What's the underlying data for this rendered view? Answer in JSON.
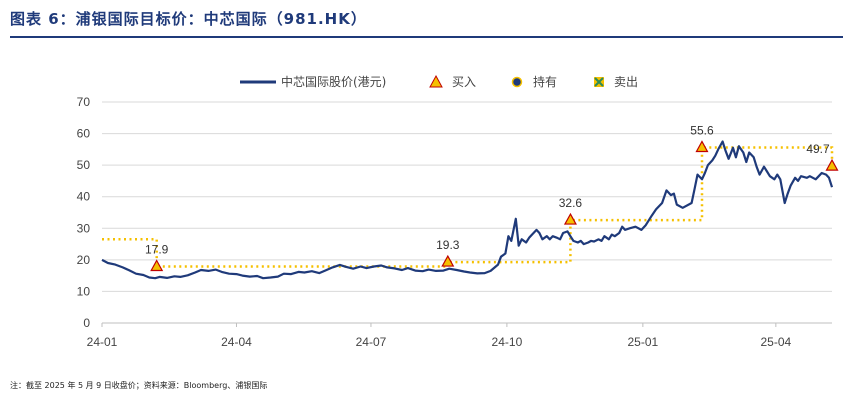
{
  "figure": {
    "title": "图表 6：浦银国际目标价：中芯国际（981.HK）",
    "source": "注：截至 2025 年 5 月 9 日收盘价；资料来源：Bloomberg、浦银国际"
  },
  "legend": {
    "price": "中芯国际股价(港元)",
    "buy": "买入",
    "hold": "持有",
    "sell": "卖出"
  },
  "colors": {
    "price_line": "#1f3a7a",
    "target_line": "#f5c000",
    "buy_marker": "#f5c000",
    "buy_marker_edge": "#c00000",
    "hold_marker": "#1f3a7a",
    "sell_marker": "#2e8b57",
    "grid": "#d9d9d9",
    "title": "#1f3a7a"
  },
  "chart_data": {
    "type": "line",
    "ylim": [
      0,
      70
    ],
    "yticks": [
      0,
      10,
      20,
      30,
      40,
      50,
      60,
      70
    ],
    "xlim": [
      "2024-01-01",
      "2025-05-09"
    ],
    "xticks": [
      {
        "label": "24-01",
        "date": "2024-01-01"
      },
      {
        "label": "24-04",
        "date": "2024-04-01"
      },
      {
        "label": "24-07",
        "date": "2024-07-01"
      },
      {
        "label": "24-10",
        "date": "2024-10-01"
      },
      {
        "label": "25-01",
        "date": "2025-01-01"
      },
      {
        "label": "25-04",
        "date": "2025-04-01"
      }
    ],
    "grid": true,
    "legend_position": "top",
    "price_series": {
      "name": "中芯国际股价(港元)",
      "points": [
        [
          "2024-01-01",
          20.0
        ],
        [
          "2024-01-05",
          19.0
        ],
        [
          "2024-01-10",
          18.5
        ],
        [
          "2024-01-15",
          17.6
        ],
        [
          "2024-01-19",
          16.8
        ],
        [
          "2024-01-24",
          15.6
        ],
        [
          "2024-01-29",
          15.2
        ],
        [
          "2024-02-02",
          14.4
        ],
        [
          "2024-02-06",
          14.2
        ],
        [
          "2024-02-09",
          14.6
        ],
        [
          "2024-02-14",
          14.3
        ],
        [
          "2024-02-19",
          14.8
        ],
        [
          "2024-02-23",
          14.6
        ],
        [
          "2024-02-28",
          15.1
        ],
        [
          "2024-03-04",
          16.0
        ],
        [
          "2024-03-08",
          16.8
        ],
        [
          "2024-03-13",
          16.5
        ],
        [
          "2024-03-18",
          16.9
        ],
        [
          "2024-03-22",
          16.2
        ],
        [
          "2024-03-27",
          15.6
        ],
        [
          "2024-04-01",
          15.5
        ],
        [
          "2024-04-05",
          15.0
        ],
        [
          "2024-04-10",
          14.7
        ],
        [
          "2024-04-15",
          14.9
        ],
        [
          "2024-04-19",
          14.2
        ],
        [
          "2024-04-24",
          14.4
        ],
        [
          "2024-04-29",
          14.7
        ],
        [
          "2024-05-03",
          15.6
        ],
        [
          "2024-05-08",
          15.5
        ],
        [
          "2024-05-13",
          16.2
        ],
        [
          "2024-05-17",
          16.0
        ],
        [
          "2024-05-22",
          16.4
        ],
        [
          "2024-05-27",
          15.8
        ],
        [
          "2024-05-31",
          16.6
        ],
        [
          "2024-06-05",
          17.6
        ],
        [
          "2024-06-10",
          18.4
        ],
        [
          "2024-06-14",
          17.8
        ],
        [
          "2024-06-19",
          17.2
        ],
        [
          "2024-06-24",
          17.9
        ],
        [
          "2024-06-28",
          17.4
        ],
        [
          "2024-07-03",
          17.9
        ],
        [
          "2024-07-08",
          18.2
        ],
        [
          "2024-07-12",
          17.6
        ],
        [
          "2024-07-17",
          17.3
        ],
        [
          "2024-07-22",
          16.8
        ],
        [
          "2024-07-26",
          17.4
        ],
        [
          "2024-07-31",
          16.6
        ],
        [
          "2024-08-05",
          16.4
        ],
        [
          "2024-08-09",
          16.9
        ],
        [
          "2024-08-14",
          16.5
        ],
        [
          "2024-08-19",
          16.6
        ],
        [
          "2024-08-23",
          17.2
        ],
        [
          "2024-08-28",
          16.8
        ],
        [
          "2024-09-02",
          16.3
        ],
        [
          "2024-09-06",
          16.0
        ],
        [
          "2024-09-11",
          15.7
        ],
        [
          "2024-09-16",
          15.8
        ],
        [
          "2024-09-20",
          16.5
        ],
        [
          "2024-09-25",
          18.5
        ],
        [
          "2024-09-27",
          21.0
        ],
        [
          "2024-09-30",
          22.0
        ],
        [
          "2024-10-02",
          27.5
        ],
        [
          "2024-10-04",
          26.0
        ],
        [
          "2024-10-07",
          33.0
        ],
        [
          "2024-10-09",
          24.5
        ],
        [
          "2024-10-11",
          26.5
        ],
        [
          "2024-10-14",
          25.5
        ],
        [
          "2024-10-16",
          27.0
        ],
        [
          "2024-10-18",
          28.0
        ],
        [
          "2024-10-21",
          29.5
        ],
        [
          "2024-10-23",
          28.5
        ],
        [
          "2024-10-25",
          26.5
        ],
        [
          "2024-10-28",
          27.5
        ],
        [
          "2024-10-30",
          26.5
        ],
        [
          "2024-11-01",
          27.5
        ],
        [
          "2024-11-04",
          27.0
        ],
        [
          "2024-11-06",
          26.5
        ],
        [
          "2024-11-08",
          28.5
        ],
        [
          "2024-11-11",
          29.0
        ],
        [
          "2024-11-13",
          27.5
        ],
        [
          "2024-11-15",
          26.0
        ],
        [
          "2024-11-18",
          25.5
        ],
        [
          "2024-11-20",
          26.0
        ],
        [
          "2024-11-22",
          25.0
        ],
        [
          "2024-11-25",
          25.5
        ],
        [
          "2024-11-27",
          26.0
        ],
        [
          "2024-11-29",
          25.8
        ],
        [
          "2024-12-02",
          26.5
        ],
        [
          "2024-12-04",
          26.0
        ],
        [
          "2024-12-06",
          27.5
        ],
        [
          "2024-12-09",
          26.5
        ],
        [
          "2024-12-11",
          28.0
        ],
        [
          "2024-12-13",
          27.5
        ],
        [
          "2024-12-16",
          28.5
        ],
        [
          "2024-12-18",
          30.5
        ],
        [
          "2024-12-20",
          29.5
        ],
        [
          "2024-12-23",
          30.0
        ],
        [
          "2024-12-27",
          30.5
        ],
        [
          "2024-12-31",
          29.5
        ],
        [
          "2025-01-03",
          31.0
        ],
        [
          "2025-01-07",
          34.0
        ],
        [
          "2025-01-10",
          36.0
        ],
        [
          "2025-01-14",
          38.0
        ],
        [
          "2025-01-17",
          42.0
        ],
        [
          "2025-01-20",
          40.5
        ],
        [
          "2025-01-22",
          41.0
        ],
        [
          "2025-01-24",
          37.5
        ],
        [
          "2025-01-28",
          36.5
        ],
        [
          "2025-02-03",
          38.0
        ],
        [
          "2025-02-05",
          42.5
        ],
        [
          "2025-02-07",
          47.0
        ],
        [
          "2025-02-10",
          45.5
        ],
        [
          "2025-02-12",
          47.5
        ],
        [
          "2025-02-14",
          50.0
        ],
        [
          "2025-02-17",
          51.5
        ],
        [
          "2025-02-19",
          53.0
        ],
        [
          "2025-02-21",
          55.0
        ],
        [
          "2025-02-24",
          57.5
        ],
        [
          "2025-02-26",
          54.5
        ],
        [
          "2025-02-28",
          52.0
        ],
        [
          "2025-03-03",
          55.5
        ],
        [
          "2025-03-05",
          52.5
        ],
        [
          "2025-03-07",
          56.0
        ],
        [
          "2025-03-10",
          54.0
        ],
        [
          "2025-03-12",
          51.0
        ],
        [
          "2025-03-14",
          54.0
        ],
        [
          "2025-03-17",
          52.5
        ],
        [
          "2025-03-19",
          49.5
        ],
        [
          "2025-03-21",
          47.0
        ],
        [
          "2025-03-24",
          49.5
        ],
        [
          "2025-03-26",
          48.0
        ],
        [
          "2025-03-28",
          46.5
        ],
        [
          "2025-03-31",
          45.5
        ],
        [
          "2025-04-02",
          47.0
        ],
        [
          "2025-04-04",
          45.5
        ],
        [
          "2025-04-07",
          38.0
        ],
        [
          "2025-04-09",
          41.0
        ],
        [
          "2025-04-11",
          43.5
        ],
        [
          "2025-04-14",
          46.0
        ],
        [
          "2025-04-16",
          45.0
        ],
        [
          "2025-04-18",
          46.5
        ],
        [
          "2025-04-22",
          46.0
        ],
        [
          "2025-04-24",
          46.5
        ],
        [
          "2025-04-28",
          45.5
        ],
        [
          "2025-04-30",
          46.5
        ],
        [
          "2025-05-02",
          47.5
        ],
        [
          "2025-05-05",
          47.0
        ],
        [
          "2025-05-07",
          46.0
        ],
        [
          "2025-05-09",
          43.0
        ]
      ]
    },
    "target_series": {
      "name": "目标价",
      "points": [
        [
          "2024-01-01",
          26.5
        ],
        [
          "2024-02-07",
          26.5
        ],
        [
          "2024-02-07",
          17.9
        ],
        [
          "2024-08-22",
          17.9
        ],
        [
          "2024-08-22",
          19.3
        ],
        [
          "2024-11-13",
          19.3
        ],
        [
          "2024-11-13",
          32.6
        ],
        [
          "2025-02-10",
          32.6
        ],
        [
          "2025-02-10",
          55.6
        ],
        [
          "2025-05-09",
          55.6
        ],
        [
          "2025-05-09",
          49.7
        ]
      ]
    },
    "ratings": [
      {
        "date": "2024-02-07",
        "value": 17.9,
        "rating": "买入",
        "label": "17.9"
      },
      {
        "date": "2024-08-22",
        "value": 19.3,
        "rating": "买入",
        "label": "19.3"
      },
      {
        "date": "2024-11-13",
        "value": 32.6,
        "rating": "买入",
        "label": "32.6"
      },
      {
        "date": "2025-02-10",
        "value": 55.6,
        "rating": "买入",
        "label": "55.6"
      },
      {
        "date": "2025-05-09",
        "value": 49.7,
        "rating": "买入",
        "label": "49.7"
      }
    ]
  }
}
